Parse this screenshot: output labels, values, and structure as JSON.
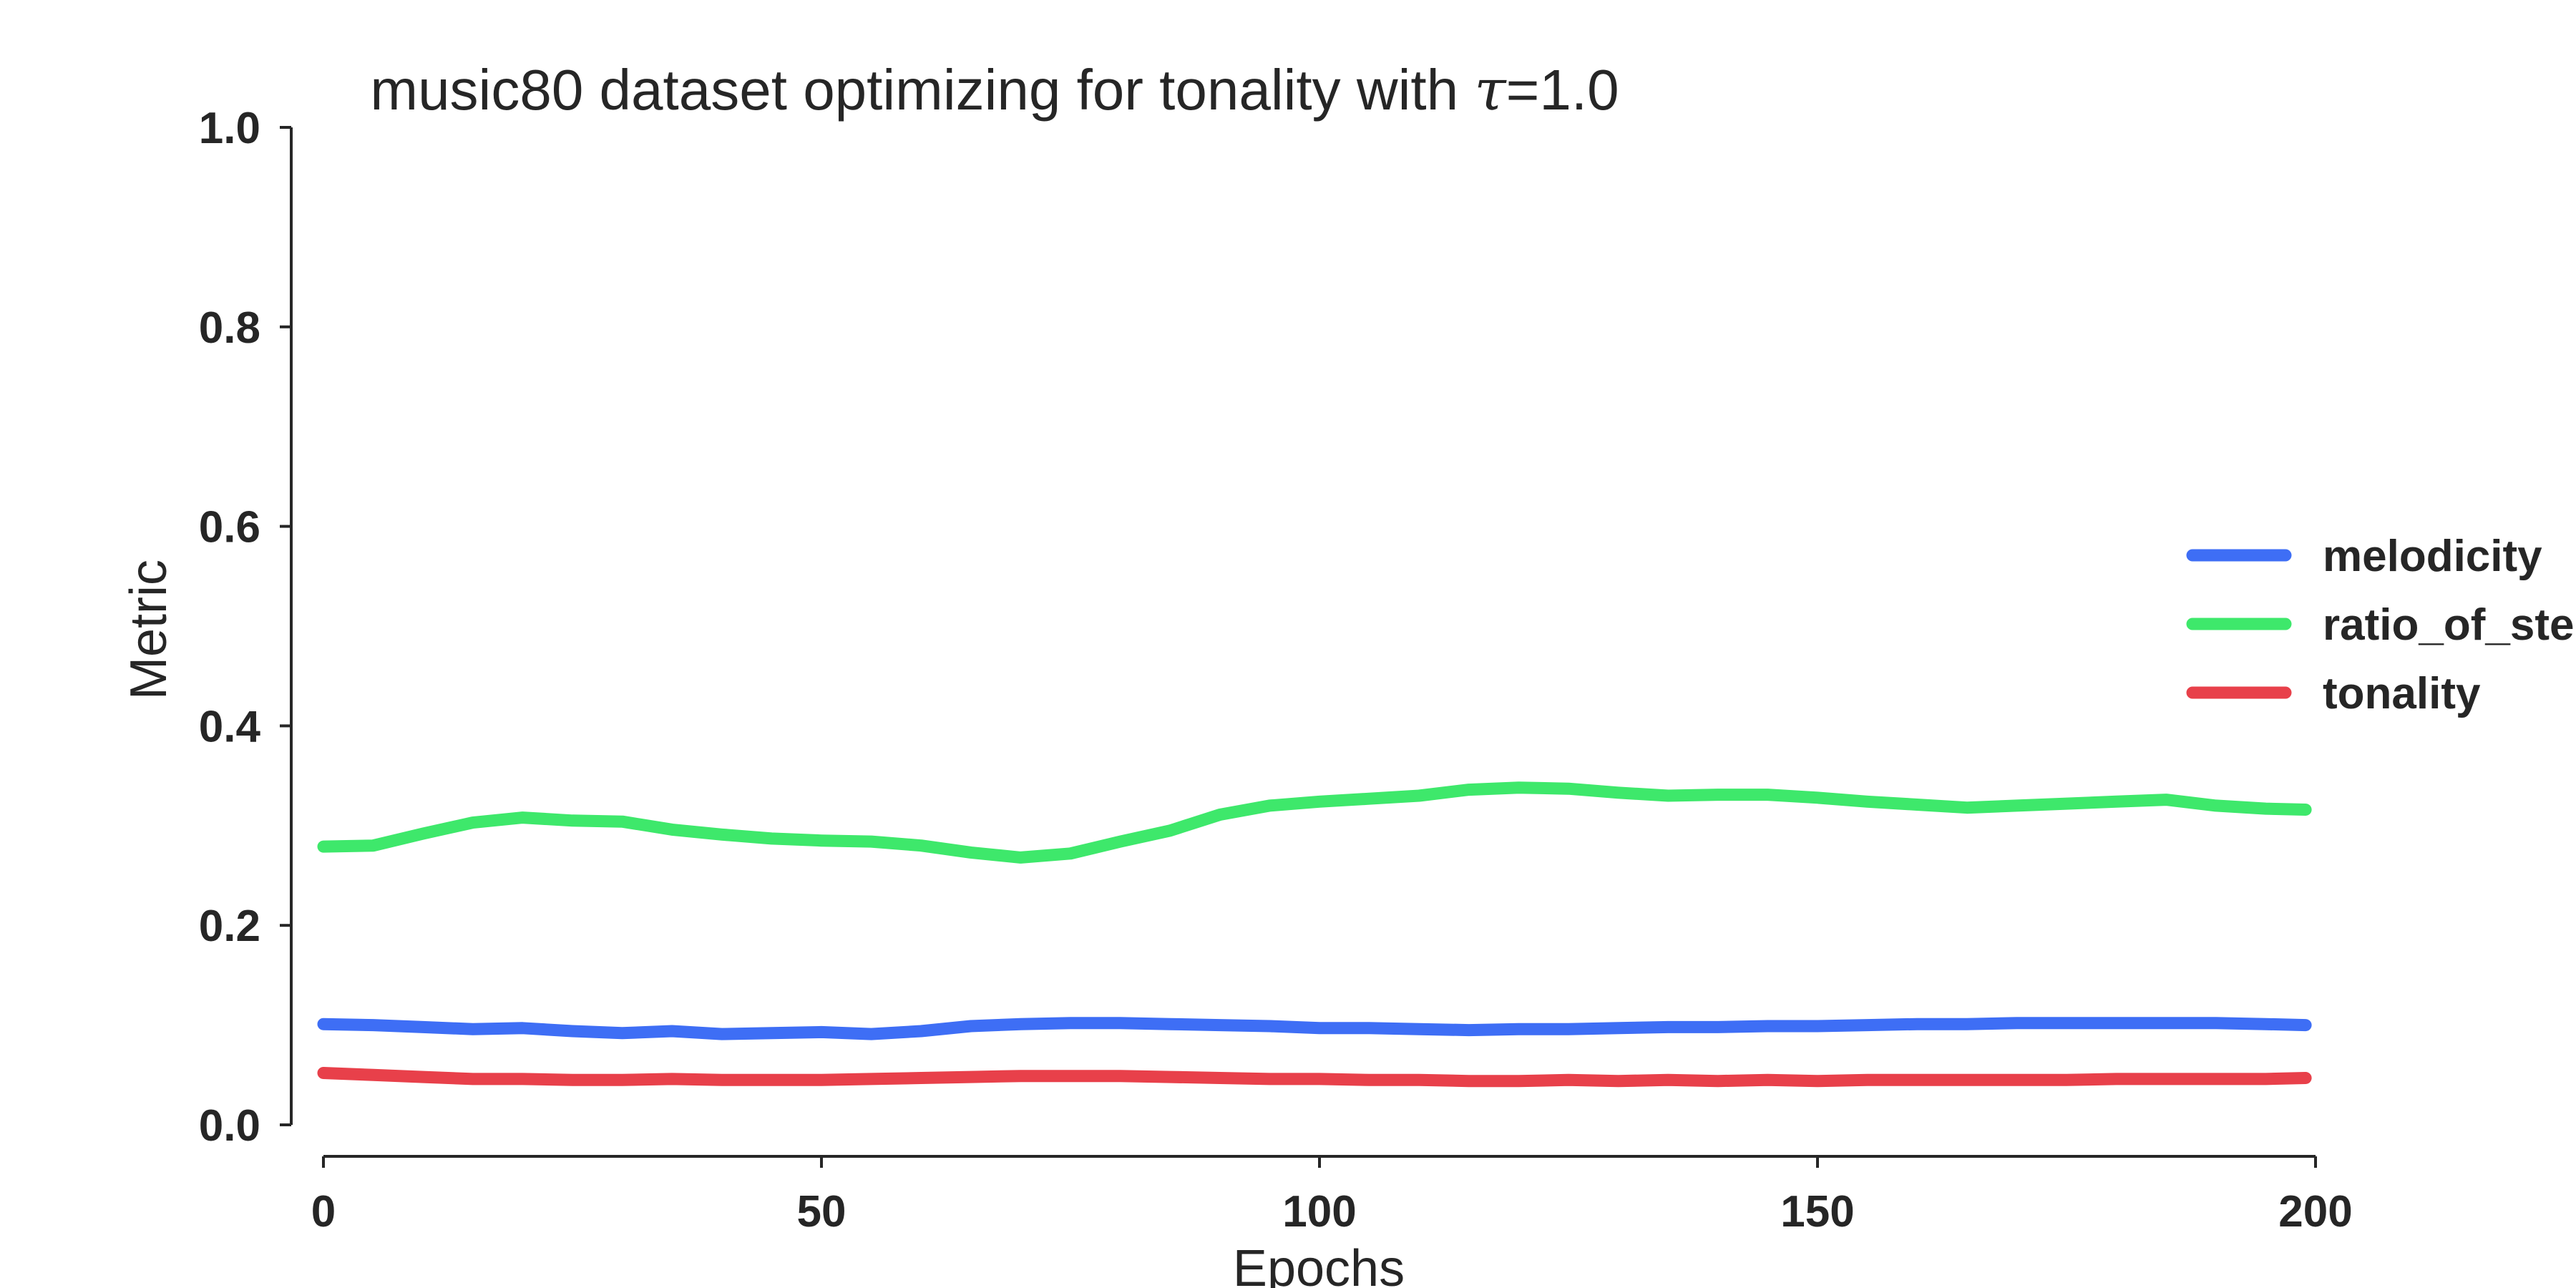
{
  "chart_data": {
    "type": "line",
    "title_prefix": "music80 dataset optimizing for tonality with ",
    "title_symbol": "τ",
    "title_suffix": "=1.0",
    "xlabel": "Epochs",
    "ylabel": "Metric",
    "xlim": [
      0,
      200
    ],
    "ylim": [
      0.0,
      1.0
    ],
    "xticks": [
      "0",
      "50",
      "100",
      "150",
      "200"
    ],
    "yticks": [
      "0.0",
      "0.2",
      "0.4",
      "0.6",
      "0.8",
      "1.0"
    ],
    "grid": false,
    "legend_position": "right",
    "x": [
      0,
      5,
      10,
      15,
      20,
      25,
      30,
      35,
      40,
      45,
      50,
      55,
      60,
      65,
      70,
      75,
      80,
      85,
      90,
      95,
      100,
      105,
      110,
      115,
      120,
      125,
      130,
      135,
      140,
      145,
      150,
      155,
      160,
      165,
      170,
      175,
      180,
      185,
      190,
      195,
      199
    ],
    "series": [
      {
        "name": "melodicity",
        "color": "#3e6ef5",
        "values": [
          0.101,
          0.1,
          0.098,
          0.096,
          0.097,
          0.094,
          0.092,
          0.094,
          0.091,
          0.092,
          0.093,
          0.091,
          0.094,
          0.099,
          0.101,
          0.102,
          0.102,
          0.101,
          0.1,
          0.099,
          0.097,
          0.097,
          0.096,
          0.095,
          0.096,
          0.096,
          0.097,
          0.098,
          0.098,
          0.099,
          0.099,
          0.1,
          0.101,
          0.101,
          0.102,
          0.102,
          0.102,
          0.102,
          0.102,
          0.101,
          0.1
        ]
      },
      {
        "name": "ratio_of_ste",
        "color": "#3ee86b",
        "values": [
          0.279,
          0.28,
          0.292,
          0.303,
          0.308,
          0.305,
          0.304,
          0.296,
          0.291,
          0.287,
          0.285,
          0.284,
          0.28,
          0.273,
          0.268,
          0.272,
          0.284,
          0.295,
          0.311,
          0.32,
          0.324,
          0.327,
          0.33,
          0.336,
          0.338,
          0.337,
          0.333,
          0.33,
          0.331,
          0.331,
          0.328,
          0.324,
          0.321,
          0.318,
          0.32,
          0.322,
          0.324,
          0.326,
          0.32,
          0.317,
          0.316
        ]
      },
      {
        "name": "tonality",
        "color": "#e8404a",
        "values": [
          0.052,
          0.05,
          0.048,
          0.046,
          0.046,
          0.045,
          0.045,
          0.046,
          0.045,
          0.045,
          0.045,
          0.046,
          0.047,
          0.048,
          0.049,
          0.049,
          0.049,
          0.048,
          0.047,
          0.046,
          0.046,
          0.045,
          0.045,
          0.044,
          0.044,
          0.045,
          0.044,
          0.045,
          0.044,
          0.045,
          0.044,
          0.045,
          0.045,
          0.045,
          0.045,
          0.045,
          0.046,
          0.046,
          0.046,
          0.046,
          0.047
        ]
      }
    ]
  }
}
